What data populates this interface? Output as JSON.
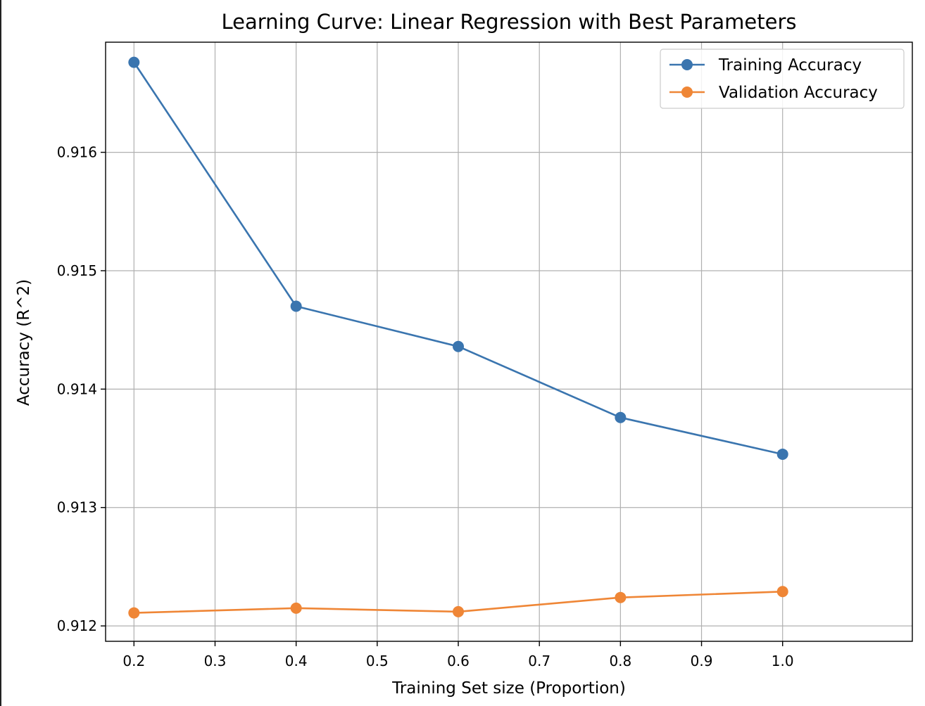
{
  "chart_data": {
    "type": "line",
    "title": "Learning Curve: Linear Regression with Best Parameters",
    "xlabel": "Training Set size (Proportion)",
    "ylabel": "Accuracy (R^2)",
    "xlim": [
      0.165,
      1.16
    ],
    "ylim": [
      0.91187,
      0.91693
    ],
    "xticks": [
      0.2,
      0.3,
      0.4,
      0.5,
      0.6,
      0.7,
      0.8,
      0.9,
      1.0
    ],
    "xtick_labels": [
      "0.2",
      "0.3",
      "0.4",
      "0.5",
      "0.6",
      "0.7",
      "0.8",
      "0.9",
      "1.0"
    ],
    "yticks": [
      0.912,
      0.913,
      0.914,
      0.915,
      0.916
    ],
    "ytick_labels": [
      "0.912",
      "0.913",
      "0.914",
      "0.915",
      "0.916"
    ],
    "grid": true,
    "legend_position": "top-right",
    "x": [
      0.2,
      0.4,
      0.6,
      0.8,
      1.0
    ],
    "series": [
      {
        "name": "Training Accuracy",
        "color": "#3a75af",
        "marker": "circle",
        "values": [
          0.91676,
          0.9147,
          0.91436,
          0.91376,
          0.91345
        ]
      },
      {
        "name": "Validation Accuracy",
        "color": "#ef8636",
        "marker": "circle",
        "values": [
          0.91211,
          0.91215,
          0.91212,
          0.91224,
          0.91229
        ]
      }
    ]
  }
}
